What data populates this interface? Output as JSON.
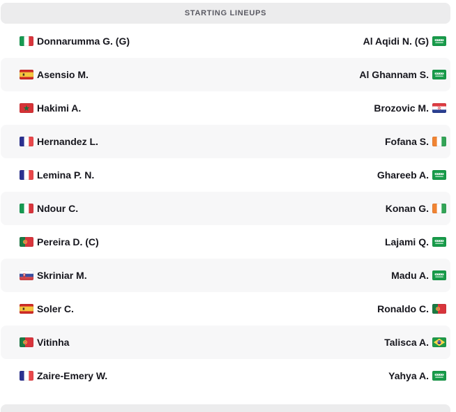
{
  "header": {
    "title": "STARTING LINEUPS"
  },
  "lineups": {
    "rows": [
      {
        "home": {
          "name": "Donnarumma G. (G)",
          "flag": "italy"
        },
        "away": {
          "name": "Al Aqidi N. (G)",
          "flag": "saudi-arabia"
        }
      },
      {
        "home": {
          "name": "Asensio M.",
          "flag": "spain"
        },
        "away": {
          "name": "Al Ghannam S.",
          "flag": "saudi-arabia"
        }
      },
      {
        "home": {
          "name": "Hakimi A.",
          "flag": "morocco"
        },
        "away": {
          "name": "Brozovic M.",
          "flag": "croatia"
        }
      },
      {
        "home": {
          "name": "Hernandez L.",
          "flag": "france"
        },
        "away": {
          "name": "Fofana S.",
          "flag": "ivory-coast"
        }
      },
      {
        "home": {
          "name": "Lemina P. N.",
          "flag": "france"
        },
        "away": {
          "name": "Ghareeb A.",
          "flag": "saudi-arabia"
        }
      },
      {
        "home": {
          "name": "Ndour C.",
          "flag": "italy"
        },
        "away": {
          "name": "Konan G.",
          "flag": "ivory-coast"
        }
      },
      {
        "home": {
          "name": "Pereira D. (C)",
          "flag": "portugal"
        },
        "away": {
          "name": "Lajami Q.",
          "flag": "saudi-arabia"
        }
      },
      {
        "home": {
          "name": "Skriniar M.",
          "flag": "slovakia"
        },
        "away": {
          "name": "Madu A.",
          "flag": "saudi-arabia"
        }
      },
      {
        "home": {
          "name": "Soler C.",
          "flag": "spain"
        },
        "away": {
          "name": "Ronaldo C.",
          "flag": "portugal"
        }
      },
      {
        "home": {
          "name": "Vitinha",
          "flag": "portugal"
        },
        "away": {
          "name": "Talisca A.",
          "flag": "brazil"
        }
      },
      {
        "home": {
          "name": "Zaire-Emery W.",
          "flag": "france"
        },
        "away": {
          "name": "Yahya A.",
          "flag": "saudi-arabia"
        }
      }
    ]
  },
  "colors": {
    "page_bg": "#ffffff",
    "header_bg": "#ececed",
    "header_text": "#5a5a63",
    "row_alt_bg": "#f7f7f8",
    "player_text": "#16161d"
  }
}
